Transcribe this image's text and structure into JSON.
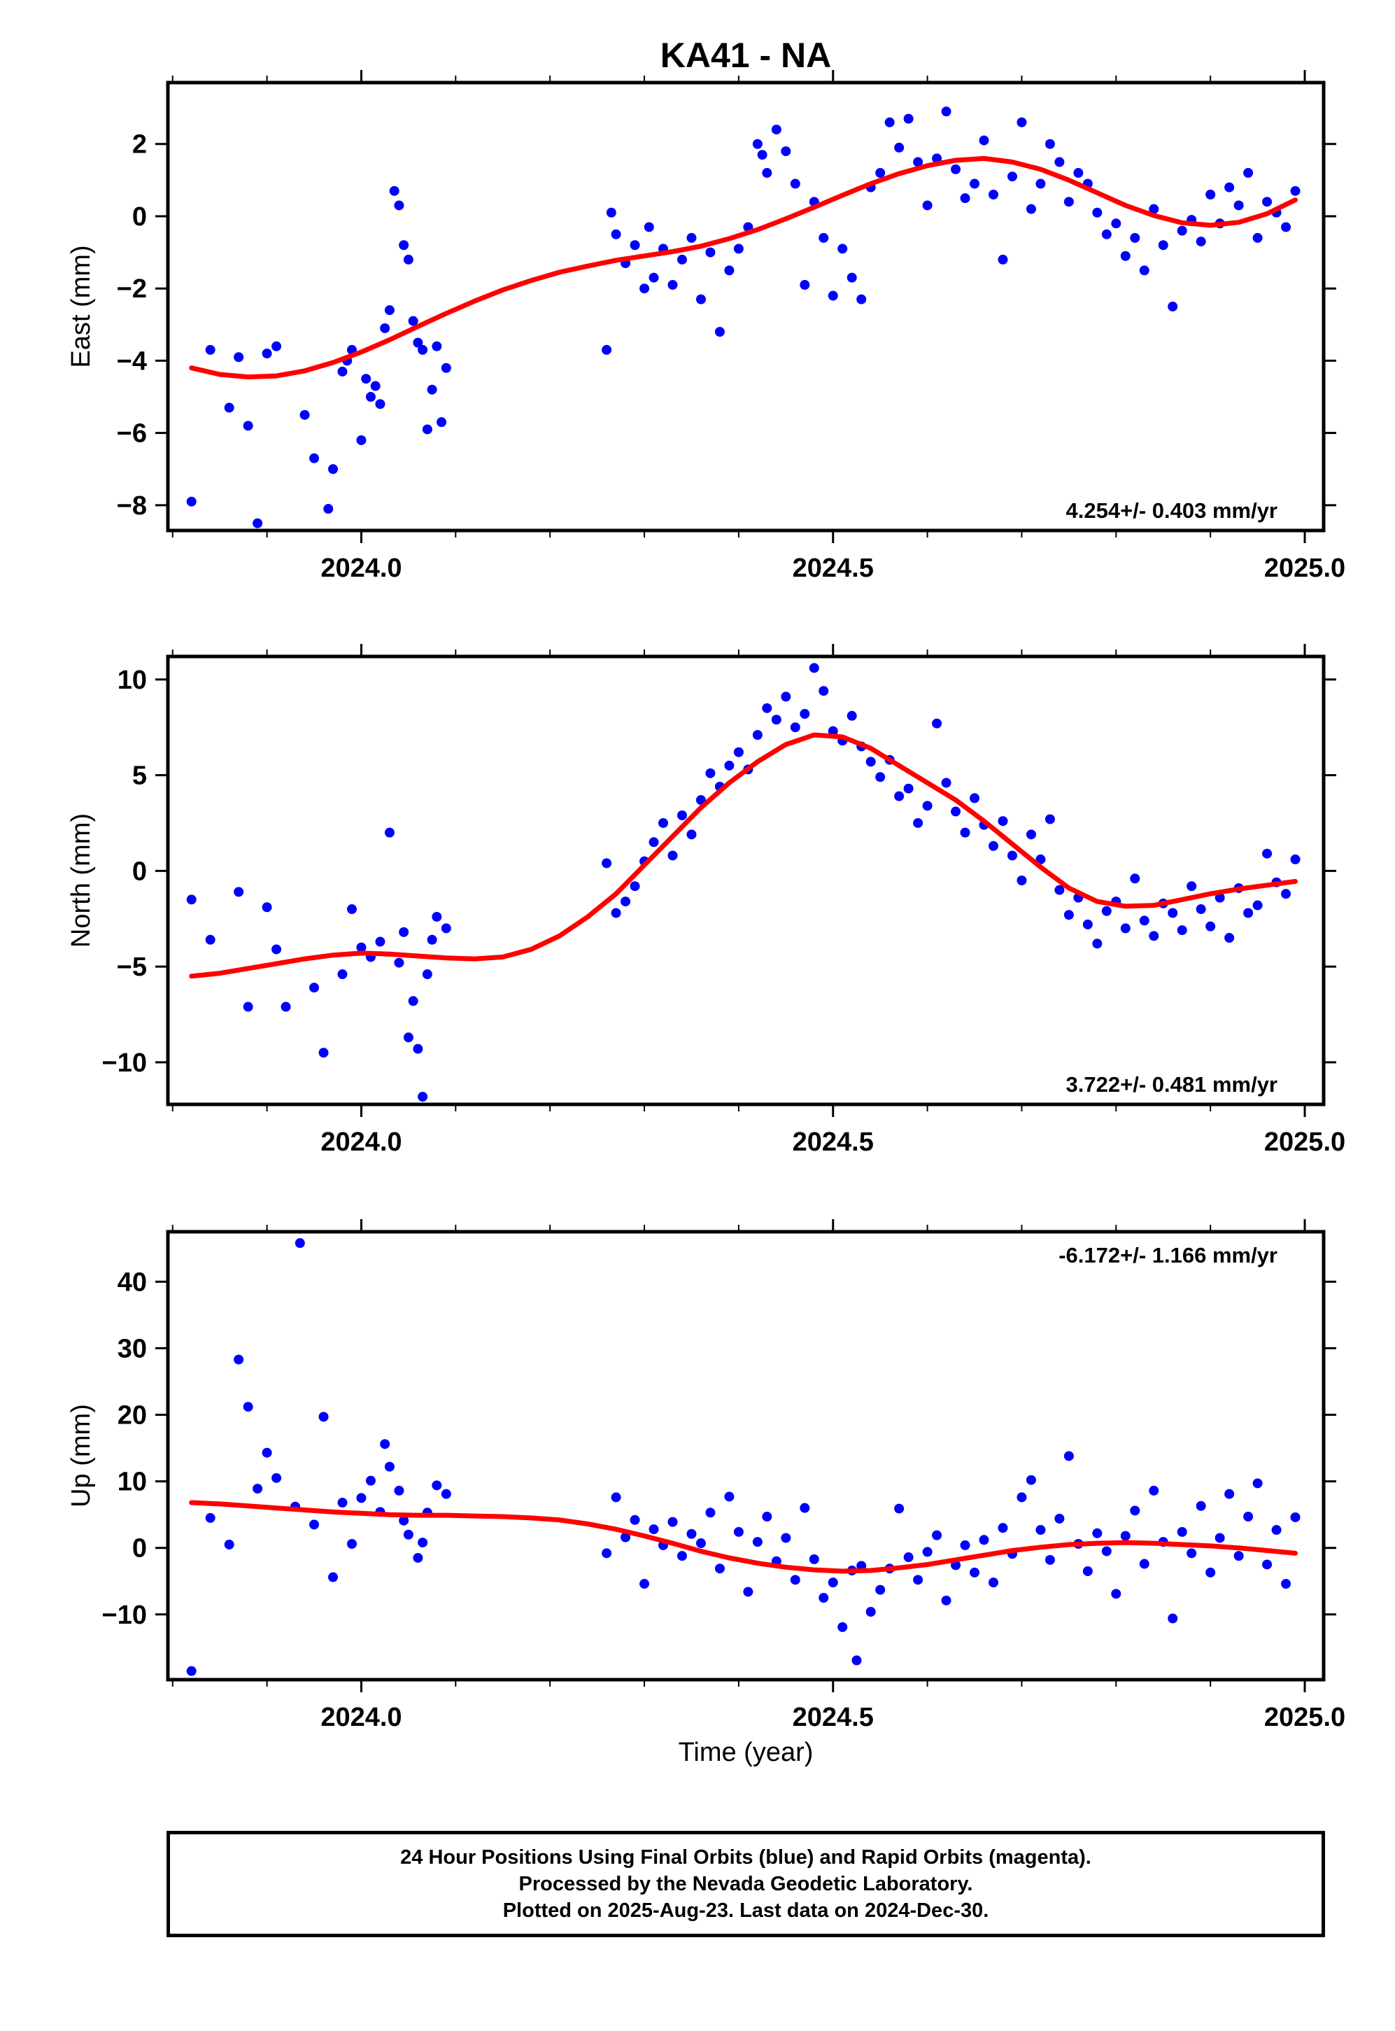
{
  "title": "KA41 - NA",
  "xlabel": "Time (year)",
  "footer": {
    "line1": "24 Hour Positions Using Final Orbits (blue) and Rapid Orbits (magenta).",
    "line2": "Processed by the Nevada Geodetic Laboratory.",
    "line3": "Plotted on 2025-Aug-23. Last data on 2024-Dec-30."
  },
  "colors": {
    "points": "#0000ff",
    "model": "#ff0000",
    "frame": "#000000"
  },
  "chart_data": [
    {
      "type": "scatter",
      "ylabel": "East (mm)",
      "xlim": [
        2023.795,
        2025.02
      ],
      "ylim": [
        -8.7,
        3.7
      ],
      "yticks": [
        -8,
        -6,
        -4,
        -2,
        0,
        2
      ],
      "xticks": [
        2024.0,
        2024.5,
        2025.0
      ],
      "xtick_labels": [
        "2024.0",
        "2024.5",
        "2025.0"
      ],
      "rate_label": "4.254+/- 0.403 mm/yr",
      "rate_position": "bottom-right",
      "model": {
        "x": [
          2023.82,
          2023.85,
          2023.88,
          2023.91,
          2023.94,
          2023.97,
          2024.0,
          2024.03,
          2024.06,
          2024.09,
          2024.12,
          2024.15,
          2024.18,
          2024.21,
          2024.24,
          2024.27,
          2024.3,
          2024.33,
          2024.36,
          2024.39,
          2024.42,
          2024.45,
          2024.48,
          2024.51,
          2024.54,
          2024.57,
          2024.6,
          2024.63,
          2024.66,
          2024.69,
          2024.72,
          2024.75,
          2024.78,
          2024.81,
          2024.84,
          2024.87,
          2024.9,
          2024.93,
          2024.96,
          2024.99
        ],
        "y": [
          -4.2,
          -4.38,
          -4.45,
          -4.42,
          -4.28,
          -4.05,
          -3.76,
          -3.42,
          -3.05,
          -2.69,
          -2.35,
          -2.04,
          -1.78,
          -1.55,
          -1.38,
          -1.22,
          -1.1,
          -0.98,
          -0.83,
          -0.62,
          -0.37,
          -0.07,
          0.25,
          0.58,
          0.9,
          1.18,
          1.4,
          1.55,
          1.6,
          1.5,
          1.3,
          1.0,
          0.65,
          0.3,
          0.02,
          -0.18,
          -0.25,
          -0.17,
          0.07,
          0.45
        ]
      },
      "points": {
        "x": [
          2023.82,
          2023.84,
          2023.86,
          2023.87,
          2023.88,
          2023.89,
          2023.9,
          2023.91,
          2023.94,
          2023.95,
          2023.965,
          2023.97,
          2023.98,
          2023.985,
          2023.99,
          2024.0,
          2024.005,
          2024.01,
          2024.015,
          2024.02,
          2024.025,
          2024.03,
          2024.035,
          2024.04,
          2024.045,
          2024.05,
          2024.055,
          2024.06,
          2024.065,
          2024.07,
          2024.075,
          2024.08,
          2024.085,
          2024.09,
          2024.26,
          2024.265,
          2024.27,
          2024.28,
          2024.29,
          2024.3,
          2024.305,
          2024.31,
          2024.32,
          2024.33,
          2024.34,
          2024.35,
          2024.36,
          2024.37,
          2024.38,
          2024.39,
          2024.4,
          2024.41,
          2024.42,
          2024.425,
          2024.43,
          2024.44,
          2024.45,
          2024.46,
          2024.47,
          2024.48,
          2024.49,
          2024.5,
          2024.51,
          2024.52,
          2024.53,
          2024.54,
          2024.55,
          2024.56,
          2024.57,
          2024.58,
          2024.59,
          2024.6,
          2024.61,
          2024.62,
          2024.63,
          2024.64,
          2024.65,
          2024.66,
          2024.67,
          2024.68,
          2024.69,
          2024.7,
          2024.71,
          2024.72,
          2024.73,
          2024.74,
          2024.75,
          2024.76,
          2024.77,
          2024.78,
          2024.79,
          2024.8,
          2024.81,
          2024.82,
          2024.83,
          2024.84,
          2024.85,
          2024.86,
          2024.87,
          2024.88,
          2024.89,
          2024.9,
          2024.91,
          2024.92,
          2024.93,
          2024.94,
          2024.95,
          2024.96,
          2024.97,
          2024.98,
          2024.99
        ],
        "y": [
          -7.9,
          -3.7,
          -5.3,
          -3.9,
          -5.8,
          -8.5,
          -3.8,
          -3.6,
          -5.5,
          -6.7,
          -8.1,
          -7.0,
          -4.3,
          -4.0,
          -3.7,
          -6.2,
          -4.5,
          -5.0,
          -4.7,
          -5.2,
          -3.1,
          -2.6,
          0.7,
          0.3,
          -0.8,
          -1.2,
          -2.9,
          -3.5,
          -3.7,
          -5.9,
          -4.8,
          -3.6,
          -5.7,
          -4.2,
          -3.7,
          0.1,
          -0.5,
          -1.3,
          -0.8,
          -2.0,
          -0.3,
          -1.7,
          -0.9,
          -1.9,
          -1.2,
          -0.6,
          -2.3,
          -1.0,
          -3.2,
          -1.5,
          -0.9,
          -0.3,
          2.0,
          1.7,
          1.2,
          2.4,
          1.8,
          0.9,
          -1.9,
          0.4,
          -0.6,
          -2.2,
          -0.9,
          -1.7,
          -2.3,
          0.8,
          1.2,
          2.6,
          1.9,
          2.7,
          1.5,
          0.3,
          1.6,
          2.9,
          1.3,
          0.5,
          0.9,
          2.1,
          0.6,
          -1.2,
          1.1,
          2.6,
          0.2,
          0.9,
          2.0,
          1.5,
          0.4,
          1.2,
          0.9,
          0.1,
          -0.5,
          -0.2,
          -1.1,
          -0.6,
          -1.5,
          0.2,
          -0.8,
          -2.5,
          -0.4,
          -0.1,
          -0.7,
          0.6,
          -0.2,
          0.8,
          0.3,
          1.2,
          -0.6,
          0.4,
          0.1,
          -0.3,
          0.7
        ]
      }
    },
    {
      "type": "scatter",
      "ylabel": "North (mm)",
      "xlim": [
        2023.795,
        2025.02
      ],
      "ylim": [
        -12.2,
        11.2
      ],
      "yticks": [
        -10,
        -5,
        0,
        5,
        10
      ],
      "xticks": [
        2024.0,
        2024.5,
        2025.0
      ],
      "xtick_labels": [
        "2024.0",
        "2024.5",
        "2025.0"
      ],
      "rate_label": "3.722+/- 0.481 mm/yr",
      "rate_position": "bottom-right",
      "model": {
        "x": [
          2023.82,
          2023.85,
          2023.88,
          2023.91,
          2023.94,
          2023.97,
          2024.0,
          2024.03,
          2024.06,
          2024.09,
          2024.12,
          2024.15,
          2024.18,
          2024.21,
          2024.24,
          2024.27,
          2024.3,
          2024.33,
          2024.36,
          2024.39,
          2024.42,
          2024.45,
          2024.48,
          2024.51,
          2024.54,
          2024.57,
          2024.6,
          2024.63,
          2024.66,
          2024.69,
          2024.72,
          2024.75,
          2024.78,
          2024.81,
          2024.84,
          2024.87,
          2024.9,
          2024.93,
          2024.96,
          2024.99
        ],
        "y": [
          -5.5,
          -5.35,
          -5.1,
          -4.85,
          -4.6,
          -4.4,
          -4.3,
          -4.35,
          -4.45,
          -4.55,
          -4.6,
          -4.5,
          -4.1,
          -3.4,
          -2.4,
          -1.2,
          0.3,
          1.8,
          3.3,
          4.6,
          5.7,
          6.6,
          7.1,
          7.0,
          6.4,
          5.5,
          4.6,
          3.7,
          2.6,
          1.4,
          0.2,
          -0.9,
          -1.6,
          -1.85,
          -1.8,
          -1.5,
          -1.2,
          -0.95,
          -0.75,
          -0.55
        ]
      },
      "points": {
        "x": [
          2023.82,
          2023.84,
          2023.87,
          2023.88,
          2023.9,
          2023.91,
          2023.92,
          2023.95,
          2023.96,
          2023.98,
          2023.99,
          2024.0,
          2024.01,
          2024.02,
          2024.03,
          2024.04,
          2024.045,
          2024.05,
          2024.055,
          2024.06,
          2024.065,
          2024.07,
          2024.075,
          2024.08,
          2024.09,
          2024.26,
          2024.27,
          2024.28,
          2024.29,
          2024.3,
          2024.31,
          2024.32,
          2024.33,
          2024.34,
          2024.35,
          2024.36,
          2024.37,
          2024.38,
          2024.39,
          2024.4,
          2024.41,
          2024.42,
          2024.43,
          2024.44,
          2024.45,
          2024.46,
          2024.47,
          2024.48,
          2024.49,
          2024.5,
          2024.51,
          2024.52,
          2024.53,
          2024.54,
          2024.55,
          2024.56,
          2024.57,
          2024.58,
          2024.59,
          2024.6,
          2024.61,
          2024.62,
          2024.63,
          2024.64,
          2024.65,
          2024.66,
          2024.67,
          2024.68,
          2024.69,
          2024.7,
          2024.71,
          2024.72,
          2024.73,
          2024.74,
          2024.75,
          2024.76,
          2024.77,
          2024.78,
          2024.79,
          2024.8,
          2024.81,
          2024.82,
          2024.83,
          2024.84,
          2024.85,
          2024.86,
          2024.87,
          2024.88,
          2024.89,
          2024.9,
          2024.91,
          2024.92,
          2024.93,
          2024.94,
          2024.95,
          2024.96,
          2024.97,
          2024.98,
          2024.99
        ],
        "y": [
          -1.5,
          -3.6,
          -1.1,
          -7.1,
          -1.9,
          -4.1,
          -7.1,
          -6.1,
          -9.5,
          -5.4,
          -2.0,
          -4.0,
          -4.5,
          -3.7,
          2.0,
          -4.8,
          -3.2,
          -8.7,
          -6.8,
          -9.3,
          -11.8,
          -5.4,
          -3.6,
          -2.4,
          -3.0,
          0.4,
          -2.2,
          -1.6,
          -0.8,
          0.5,
          1.5,
          2.5,
          0.8,
          2.9,
          1.9,
          3.7,
          5.1,
          4.4,
          5.5,
          6.2,
          5.3,
          7.1,
          8.5,
          7.9,
          9.1,
          7.5,
          8.2,
          10.6,
          9.4,
          7.3,
          6.8,
          8.1,
          6.5,
          5.7,
          4.9,
          5.8,
          3.9,
          4.3,
          2.5,
          3.4,
          7.7,
          4.6,
          3.1,
          2.0,
          3.8,
          2.4,
          1.3,
          2.6,
          0.8,
          -0.5,
          1.9,
          0.6,
          2.7,
          -1.0,
          -2.3,
          -1.4,
          -2.8,
          -3.8,
          -2.1,
          -1.6,
          -3.0,
          -0.4,
          -2.6,
          -3.4,
          -1.7,
          -2.2,
          -3.1,
          -0.8,
          -2.0,
          -2.9,
          -1.4,
          -3.5,
          -0.9,
          -2.2,
          -1.8,
          0.9,
          -0.6,
          -1.2,
          0.6
        ]
      }
    },
    {
      "type": "scatter",
      "ylabel": "Up (mm)",
      "xlim": [
        2023.795,
        2025.02
      ],
      "ylim": [
        -19.8,
        47.5
      ],
      "yticks": [
        -10,
        0,
        10,
        20,
        30,
        40
      ],
      "xticks": [
        2024.0,
        2024.5,
        2025.0
      ],
      "xtick_labels": [
        "2024.0",
        "2024.5",
        "2025.0"
      ],
      "rate_label": "-6.172+/- 1.166 mm/yr",
      "rate_position": "top-right",
      "model": {
        "x": [
          2023.82,
          2023.85,
          2023.88,
          2023.91,
          2023.94,
          2023.97,
          2024.0,
          2024.03,
          2024.06,
          2024.09,
          2024.12,
          2024.15,
          2024.18,
          2024.21,
          2024.24,
          2024.27,
          2024.3,
          2024.33,
          2024.36,
          2024.39,
          2024.42,
          2024.45,
          2024.48,
          2024.51,
          2024.54,
          2024.57,
          2024.6,
          2024.63,
          2024.66,
          2024.69,
          2024.72,
          2024.75,
          2024.78,
          2024.81,
          2024.84,
          2024.87,
          2024.9,
          2024.93,
          2024.96,
          2024.99
        ],
        "y": [
          6.8,
          6.6,
          6.3,
          6.0,
          5.7,
          5.4,
          5.2,
          5.0,
          4.9,
          4.9,
          4.8,
          4.7,
          4.5,
          4.2,
          3.6,
          2.8,
          1.8,
          0.7,
          -0.5,
          -1.5,
          -2.3,
          -2.9,
          -3.3,
          -3.5,
          -3.4,
          -3.0,
          -2.5,
          -1.8,
          -1.1,
          -0.4,
          0.1,
          0.5,
          0.7,
          0.8,
          0.7,
          0.5,
          0.3,
          0.0,
          -0.4,
          -0.8
        ]
      },
      "points": {
        "x": [
          2023.82,
          2023.84,
          2023.86,
          2023.87,
          2023.88,
          2023.89,
          2023.9,
          2023.91,
          2023.93,
          2023.935,
          2023.95,
          2023.96,
          2023.97,
          2023.98,
          2023.99,
          2024.0,
          2024.01,
          2024.02,
          2024.025,
          2024.03,
          2024.04,
          2024.045,
          2024.05,
          2024.06,
          2024.065,
          2024.07,
          2024.08,
          2024.09,
          2024.26,
          2024.27,
          2024.28,
          2024.29,
          2024.3,
          2024.31,
          2024.32,
          2024.33,
          2024.34,
          2024.35,
          2024.36,
          2024.37,
          2024.38,
          2024.39,
          2024.4,
          2024.41,
          2024.42,
          2024.43,
          2024.44,
          2024.45,
          2024.46,
          2024.47,
          2024.48,
          2024.49,
          2024.5,
          2024.51,
          2024.52,
          2024.525,
          2024.53,
          2024.54,
          2024.55,
          2024.56,
          2024.57,
          2024.58,
          2024.59,
          2024.6,
          2024.61,
          2024.62,
          2024.63,
          2024.64,
          2024.65,
          2024.66,
          2024.67,
          2024.68,
          2024.69,
          2024.7,
          2024.71,
          2024.72,
          2024.73,
          2024.74,
          2024.75,
          2024.76,
          2024.77,
          2024.78,
          2024.79,
          2024.8,
          2024.81,
          2024.82,
          2024.83,
          2024.84,
          2024.85,
          2024.86,
          2024.87,
          2024.88,
          2024.89,
          2024.9,
          2024.91,
          2024.92,
          2024.93,
          2024.94,
          2024.95,
          2024.96,
          2024.97,
          2024.98,
          2024.99
        ],
        "y": [
          -18.5,
          4.5,
          0.5,
          28.3,
          21.2,
          8.9,
          14.3,
          10.5,
          6.2,
          45.8,
          3.5,
          19.7,
          -4.4,
          6.8,
          0.6,
          7.5,
          10.1,
          5.4,
          15.6,
          12.2,
          8.6,
          4.1,
          2.0,
          -1.5,
          0.8,
          5.3,
          9.4,
          8.1,
          -0.8,
          7.6,
          1.6,
          4.2,
          -5.4,
          2.8,
          0.4,
          3.9,
          -1.2,
          2.1,
          0.7,
          5.3,
          -3.1,
          7.7,
          2.4,
          -6.6,
          0.9,
          4.7,
          -2.0,
          1.5,
          -4.8,
          6.0,
          -1.7,
          -7.5,
          -5.2,
          -11.9,
          -3.4,
          -16.9,
          -2.7,
          -9.6,
          -6.3,
          -3.1,
          5.9,
          -1.4,
          -4.8,
          -0.6,
          1.9,
          -7.9,
          -2.6,
          0.4,
          -3.7,
          1.2,
          -5.2,
          3.0,
          -0.9,
          7.6,
          10.2,
          2.7,
          -1.8,
          4.4,
          13.8,
          0.6,
          -3.5,
          2.2,
          -0.5,
          -6.9,
          1.8,
          5.6,
          -2.4,
          8.6,
          0.9,
          -10.6,
          2.4,
          -0.8,
          6.3,
          -3.7,
          1.5,
          8.1,
          -1.2,
          4.7,
          9.7,
          -2.5,
          2.7,
          -5.4,
          4.6
        ]
      }
    }
  ]
}
